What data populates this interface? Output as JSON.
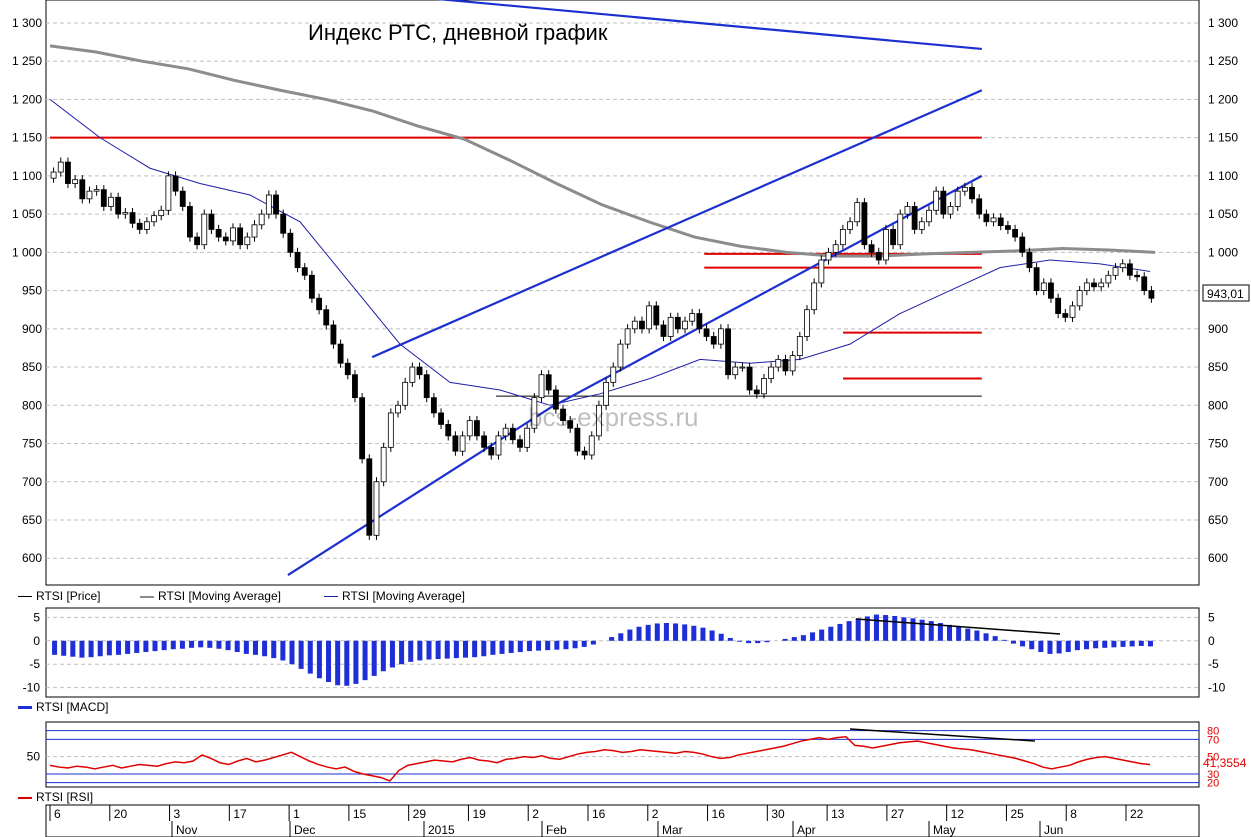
{
  "title": "Индекс РТС, дневной график",
  "watermark": "bcs-express.ru",
  "colors": {
    "candle": "#000000",
    "ma_long": "#8c8c8c",
    "ma_short": "#1f1fa8",
    "trend_line": "#1c2fd0",
    "level_red": "#e00000",
    "macd": "#1f2fd8",
    "rsi": "#e00000",
    "grid": "#bfbfbf"
  },
  "chart_data": [
    {
      "type": "candlestick",
      "name": "price",
      "ylim": [
        565,
        1330
      ],
      "y_ticks": [
        "1 300",
        "1 250",
        "1 200",
        "1 150",
        "1 100",
        "1 050",
        "1 000",
        "950",
        "900",
        "850",
        "800",
        "750",
        "700",
        "650",
        "600"
      ],
      "y_tick_values": [
        1300,
        1250,
        1200,
        1150,
        1100,
        1050,
        1000,
        950,
        900,
        850,
        800,
        750,
        700,
        650,
        600
      ],
      "last_price_label": "943,01",
      "legend": [
        "RTSI [Price]",
        "RTSI [Moving Average]",
        "RTSI [Moving Average]"
      ],
      "x_range": [
        0,
        230
      ],
      "closes": [
        1105,
        1118,
        1090,
        1095,
        1070,
        1080,
        1082,
        1060,
        1072,
        1050,
        1052,
        1038,
        1030,
        1040,
        1048,
        1055,
        1100,
        1080,
        1060,
        1020,
        1010,
        1050,
        1030,
        1020,
        1015,
        1032,
        1010,
        1020,
        1036,
        1050,
        1075,
        1050,
        1025,
        1000,
        980,
        970,
        940,
        925,
        905,
        880,
        855,
        840,
        810,
        730,
        630,
        700,
        745,
        790,
        800,
        830,
        850,
        840,
        810,
        790,
        775,
        760,
        740,
        760,
        780,
        760,
        745,
        735,
        760,
        770,
        755,
        745,
        770,
        810,
        840,
        820,
        795,
        780,
        770,
        740,
        735,
        760,
        800,
        830,
        850,
        880,
        900,
        910,
        900,
        930,
        905,
        890,
        915,
        900,
        910,
        920,
        900,
        890,
        880,
        900,
        840,
        850,
        850,
        820,
        815,
        835,
        850,
        860,
        845,
        865,
        890,
        925,
        960,
        990,
        1000,
        1010,
        1030,
        1040,
        1065,
        1010,
        1000,
        990,
        1030,
        1010,
        1050,
        1060,
        1030,
        1040,
        1055,
        1080,
        1050,
        1060,
        1080,
        1085,
        1070,
        1050,
        1040,
        1045,
        1035,
        1030,
        1020,
        1000,
        980,
        950,
        960,
        940,
        920,
        915,
        930,
        950,
        960,
        955,
        960,
        970,
        980,
        985,
        970,
        968,
        950,
        940
      ],
      "ma_long": [
        1270,
        1262,
        1250,
        1240,
        1225,
        1212,
        1200,
        1185,
        1165,
        1148,
        1120,
        1090,
        1062,
        1040,
        1020,
        1008,
        1000,
        995,
        995,
        998,
        1000,
        1002,
        1005,
        1003,
        1000
      ],
      "ma_short": [
        1200,
        1150,
        1110,
        1090,
        1075,
        1040,
        960,
        880,
        830,
        820,
        800,
        815,
        835,
        860,
        855,
        860,
        880,
        920,
        950,
        980,
        990,
        985,
        975
      ],
      "trend_lines": [
        {
          "from": [
            65,
            863
          ],
          "to": [
            188,
            1212
          ]
        },
        {
          "from": [
            101,
            797
          ],
          "to": [
            188,
            1100
          ]
        },
        {
          "from": [
            72,
            1335
          ],
          "to": [
            188,
            1266
          ]
        },
        {
          "from": [
            48,
            578
          ],
          "to": [
            101,
            797
          ]
        }
      ],
      "levels": [
        {
          "value": 1150,
          "from": 0,
          "to": 188,
          "color": "red"
        },
        {
          "value": 998,
          "from": 132,
          "to": 188,
          "color": "red"
        },
        {
          "value": 980,
          "from": 132,
          "to": 188,
          "color": "red"
        },
        {
          "value": 895,
          "from": 160,
          "to": 188,
          "color": "red"
        },
        {
          "value": 835,
          "from": 160,
          "to": 188,
          "color": "red"
        },
        {
          "value": 812,
          "from": 90,
          "to": 188,
          "color": "black"
        }
      ]
    },
    {
      "type": "bar",
      "name": "macd",
      "ylim": [
        -12,
        7
      ],
      "y_ticks": [
        "5",
        "0",
        "-5",
        "-10"
      ],
      "y_tick_values": [
        5,
        0,
        -5,
        -10
      ],
      "legend": [
        "RTSI [MACD]"
      ],
      "values": [
        -3,
        -3.2,
        -3.4,
        -3.6,
        -3.5,
        -3.3,
        -3.1,
        -3,
        -2.8,
        -2.6,
        -2.4,
        -2.2,
        -2,
        -1.8,
        -1.7,
        -1.5,
        -1.4,
        -1.5,
        -1.7,
        -2,
        -2.4,
        -2.8,
        -3,
        -3.3,
        -3.7,
        -4.2,
        -5,
        -6,
        -7,
        -8,
        -8.8,
        -9.5,
        -9.6,
        -9.2,
        -8.4,
        -7.5,
        -6.5,
        -5.7,
        -5,
        -4.5,
        -4.2,
        -4,
        -3.9,
        -3.8,
        -3.7,
        -3.6,
        -3.5,
        -3.3,
        -3,
        -2.8,
        -2.6,
        -2.4,
        -2.2,
        -2.1,
        -2,
        -1.9,
        -1.8,
        -1.6,
        -1.3,
        -0.8,
        0,
        0.8,
        1.6,
        2.4,
        3,
        3.4,
        3.7,
        3.8,
        3.7,
        3.5,
        3.2,
        2.8,
        2.2,
        1.5,
        0.6,
        -0.2,
        -0.5,
        -0.5,
        -0.3,
        0,
        0.4,
        0.8,
        1.2,
        1.8,
        2.4,
        3,
        3.6,
        4.2,
        4.8,
        5.2,
        5.6,
        5.5,
        5.3,
        5,
        4.8,
        4.5,
        4.2,
        3.8,
        3.4,
        3,
        2.6,
        2.2,
        1.6,
        1,
        0.2,
        -0.6,
        -1.2,
        -1.8,
        -2.4,
        -2.8,
        -2.7,
        -2.4,
        -2,
        -1.8,
        -1.6,
        -1.5,
        -1.4,
        -1.3,
        -1.2,
        -1.1,
        -1.2
      ]
    },
    {
      "type": "line",
      "name": "rsi",
      "ylim": [
        15,
        90
      ],
      "y_ticks": [
        "80",
        "70",
        "50",
        "30",
        "20"
      ],
      "y_tick_values": [
        80,
        70,
        50,
        30,
        20
      ],
      "last_value_label": "41,3554",
      "legend": [
        "RTSI [RSI]"
      ],
      "values": [
        40,
        38,
        37,
        39,
        38,
        36,
        38,
        40,
        37,
        39,
        41,
        40,
        39,
        42,
        44,
        43,
        45,
        52,
        48,
        43,
        41,
        45,
        48,
        44,
        46,
        49,
        52,
        55,
        50,
        45,
        41,
        38,
        36,
        38,
        33,
        30,
        28,
        26,
        22,
        34,
        40,
        42,
        44,
        46,
        45,
        44,
        47,
        49,
        46,
        45,
        43,
        47,
        48,
        50,
        49,
        51,
        48,
        47,
        50,
        53,
        55,
        56,
        58,
        57,
        55,
        56,
        58,
        57,
        56,
        55,
        54,
        56,
        55,
        53,
        50,
        48,
        49,
        52,
        54,
        56,
        58,
        60,
        62,
        65,
        68,
        70,
        72,
        70,
        72,
        73,
        63,
        62,
        60,
        62,
        64,
        66,
        67,
        68,
        66,
        64,
        62,
        60,
        59,
        58,
        56,
        54,
        52,
        50,
        48,
        45,
        42,
        38,
        36,
        38,
        40,
        44,
        47,
        49,
        50,
        48,
        46,
        44,
        42,
        41
      ]
    }
  ],
  "x_axis": {
    "day_ticks": [
      "6",
      "20",
      "3",
      "17",
      "1",
      "15",
      "29",
      "19",
      "2",
      "16",
      "2",
      "16",
      "30",
      "13",
      "27",
      "12",
      "25",
      "8",
      "22"
    ],
    "month_labels": [
      "Nov",
      "Dec",
      "2015",
      "Feb",
      "Mar",
      "Apr",
      "May",
      "Jun"
    ]
  }
}
